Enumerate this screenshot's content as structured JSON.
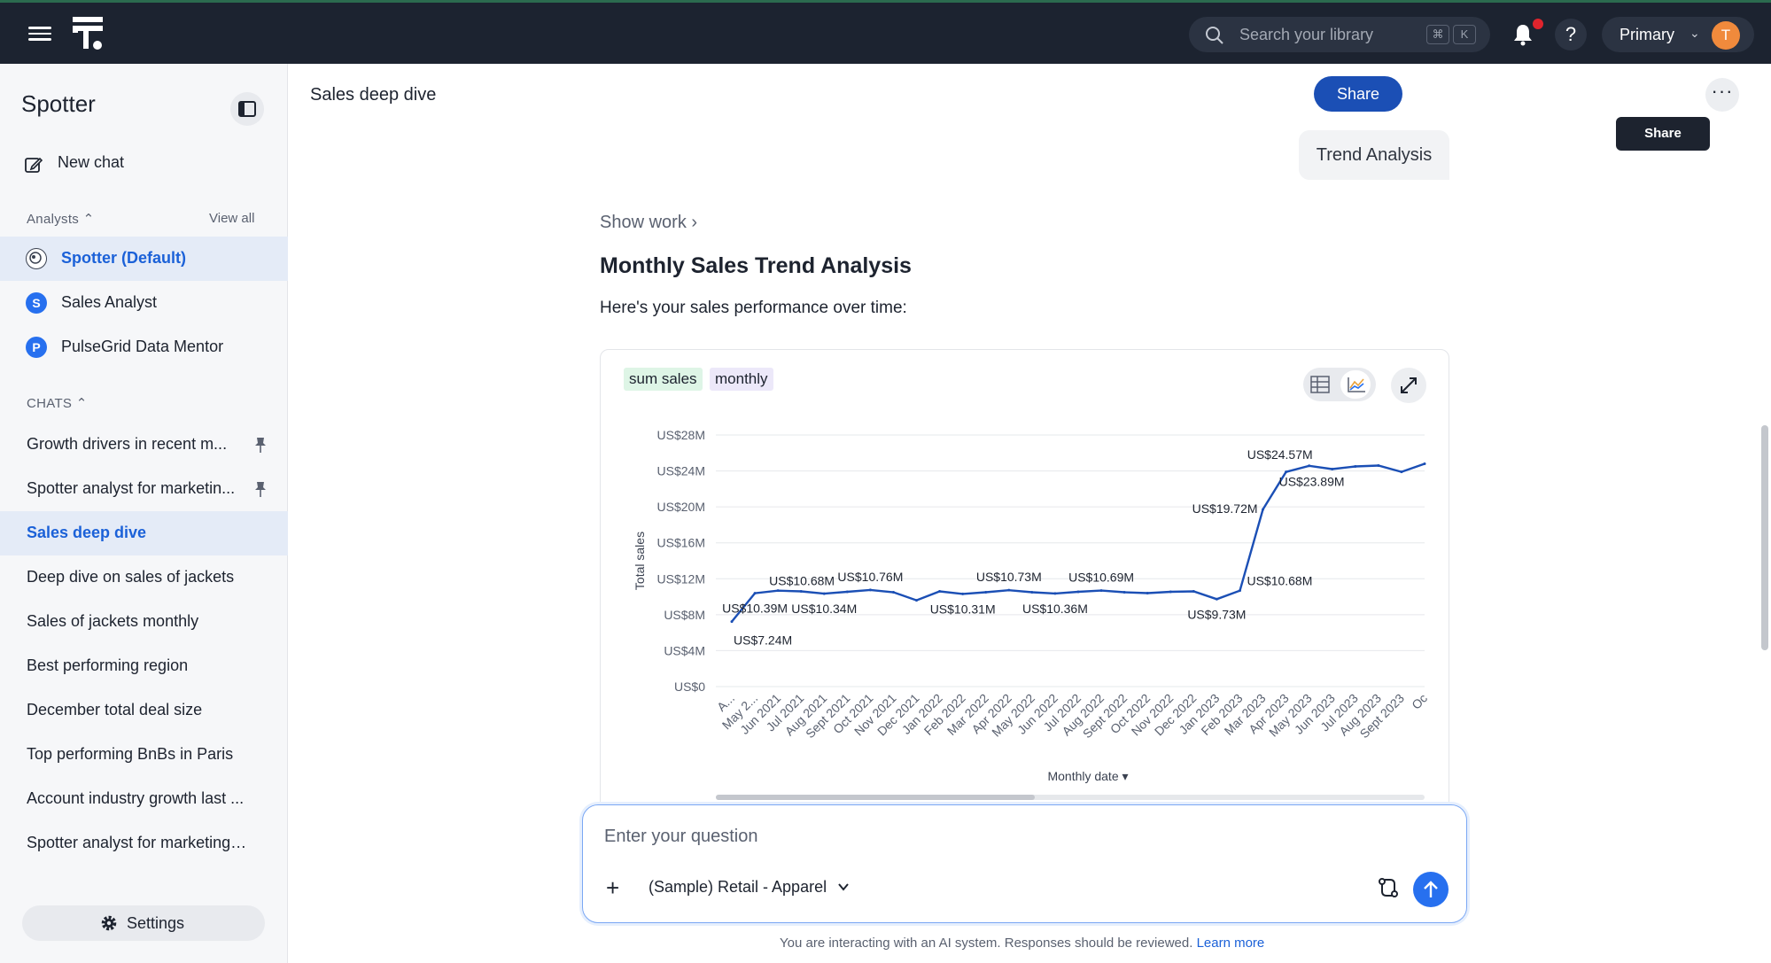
{
  "topbar": {
    "search_placeholder": "Search your library",
    "shortcut_key1": "⌘",
    "shortcut_key2": "K",
    "help_label": "?",
    "org_name": "Primary",
    "avatar_initial": "T"
  },
  "sidebar": {
    "title": "Spotter",
    "new_chat": "New chat",
    "analysts_header": "Analysts",
    "view_all": "View all",
    "analysts": [
      {
        "label": "Spotter (Default)",
        "badge": ""
      },
      {
        "label": "Sales Analyst",
        "badge": "S"
      },
      {
        "label": "PulseGrid Data Mentor",
        "badge": "P"
      }
    ],
    "chats_header": "CHATS",
    "chats": [
      {
        "label": "Growth drivers in recent m..."
      },
      {
        "label": "Spotter analyst for marketin..."
      },
      {
        "label": "Sales deep dive"
      },
      {
        "label": "Deep dive on sales of jackets"
      },
      {
        "label": "Sales of jackets monthly"
      },
      {
        "label": "Best performing region"
      },
      {
        "label": "December total deal size"
      },
      {
        "label": "Top performing BnBs in Paris"
      },
      {
        "label": "Account industry growth last ..."
      },
      {
        "label": "Spotter analyst for marketing ..."
      }
    ],
    "settings": "Settings"
  },
  "main": {
    "page_title": "Sales deep dive",
    "share": "Share",
    "share_tooltip": "Share",
    "more": "···",
    "user_message": "Trend Analysis",
    "show_work": "Show work",
    "response_title": "Monthly Sales Trend Analysis",
    "response_subtitle": "Here's your sales performance over time:",
    "chip_measure": "sum sales",
    "chip_period": "monthly",
    "composer_placeholder": "Enter your question",
    "source_name": "(Sample) Retail - Apparel",
    "disclaimer": "You are interacting with an AI system. Responses should be reviewed.",
    "learn_more": "Learn more"
  },
  "colors": {
    "accent": "#2770ef",
    "line": "#1b4fb5",
    "topbar": "#1c2330"
  },
  "chart_data": {
    "type": "line",
    "ylabel": "Total sales",
    "xlabel": "Monthly date",
    "ylim": [
      0,
      28
    ],
    "yticks": [
      "US$0",
      "US$4M",
      "US$8M",
      "US$12M",
      "US$16M",
      "US$20M",
      "US$24M",
      "US$28M"
    ],
    "categories": [
      "A...",
      "May 2...",
      "Jun 2021",
      "Jul 2021",
      "Aug 2021",
      "Sept 2021",
      "Oct 2021",
      "Nov 2021",
      "Dec 2021",
      "Jan 2022",
      "Feb 2022",
      "Mar 2022",
      "Apr 2022",
      "May 2022",
      "Jun 2022",
      "Jul 2022",
      "Aug 2022",
      "Sept 2022",
      "Oct 2022",
      "Nov 2022",
      "Dec 2022",
      "Jan 2023",
      "Feb 2023",
      "Mar 2023",
      "Apr 2023",
      "May 2023",
      "Jun 2023",
      "Jul 2023",
      "Aug 2023",
      "Sept 2023",
      "Oc"
    ],
    "values": [
      7.24,
      10.39,
      10.68,
      10.6,
      10.34,
      10.55,
      10.76,
      10.5,
      9.6,
      10.6,
      10.31,
      10.5,
      10.73,
      10.5,
      10.36,
      10.55,
      10.69,
      10.5,
      10.4,
      10.55,
      10.6,
      9.73,
      10.68,
      19.72,
      23.89,
      24.57,
      24.2,
      24.5,
      24.6,
      23.9,
      24.8
    ],
    "data_labels": [
      {
        "i": 0,
        "text": "US$7.24M",
        "pos": "below"
      },
      {
        "i": 1,
        "text": "US$10.39M",
        "pos": "below"
      },
      {
        "i": 2,
        "text": "US$10.68M",
        "pos": "above"
      },
      {
        "i": 4,
        "text": "US$10.34M",
        "pos": "below"
      },
      {
        "i": 6,
        "text": "US$10.76M",
        "pos": "above"
      },
      {
        "i": 10,
        "text": "US$10.31M",
        "pos": "below"
      },
      {
        "i": 12,
        "text": "US$10.73M",
        "pos": "above"
      },
      {
        "i": 14,
        "text": "US$10.36M",
        "pos": "below"
      },
      {
        "i": 16,
        "text": "US$10.69M",
        "pos": "above"
      },
      {
        "i": 21,
        "text": "US$9.73M",
        "pos": "below"
      },
      {
        "i": 22,
        "text": "US$10.68M",
        "pos": "right"
      },
      {
        "i": 23,
        "text": "US$19.72M",
        "pos": "left"
      },
      {
        "i": 24,
        "text": "US$23.89M",
        "pos": "right"
      },
      {
        "i": 25,
        "text": "US$24.57M",
        "pos": "left"
      }
    ]
  }
}
